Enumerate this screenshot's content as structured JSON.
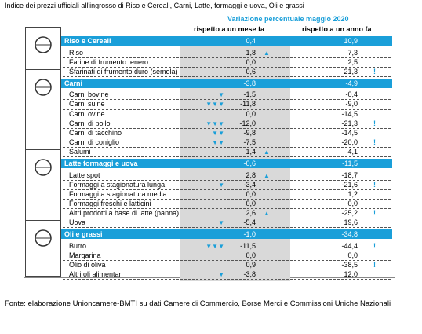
{
  "header": {
    "title": "Indice dei prezzi ufficiali all'ingrosso di Riso e Cereali, Carni, Latte, formaggi e uova, Oli e grassi",
    "period": "Variazione percentuale maggio 2020",
    "col_month": "rispetto a un mese fa",
    "col_year": "rispetto a un anno fa"
  },
  "sections": [
    {
      "name": "Riso e Cereali",
      "month": "0,4",
      "year": "10,9",
      "rows": [
        {
          "name": "Riso",
          "month": "1,8",
          "up": "▲",
          "year": "7,3"
        },
        {
          "name": "Farine di frumento tenero",
          "month": "0,0",
          "year": "2,5"
        },
        {
          "name": "Sfarinati di frumento duro (semola)",
          "month": "0,6",
          "year": "21,3",
          "flag": "!"
        }
      ]
    },
    {
      "name": "Carni",
      "month": "-3,8",
      "year": "-4,9",
      "rows": [
        {
          "name": "Carni bovine",
          "down": "▼",
          "month": "-1,5",
          "year": "-0,4"
        },
        {
          "name": "Carni suine",
          "down": "▼▼▼",
          "month": "-11,8",
          "year": "-9,0"
        },
        {
          "name": "Carni ovine",
          "month": "0,0",
          "year": "-14,5"
        },
        {
          "name": "Carni di pollo",
          "down": "▼▼▼",
          "month": "-12,0",
          "year": "-21,3",
          "flag": "!"
        },
        {
          "name": "Carni di tacchino",
          "down": "▼▼",
          "month": "-9,8",
          "year": "-14,5"
        },
        {
          "name": "Carni di coniglio",
          "down": "▼▼",
          "month": "-7,5",
          "year": "-20,0",
          "flag": "!"
        },
        {
          "name": "Salumi",
          "month": "1,4",
          "up": "▲",
          "year": "4,1"
        }
      ]
    },
    {
      "name": "Latte formaggi e uova",
      "month": "-0,6",
      "year": "-11,5",
      "rows": [
        {
          "name": "Latte spot",
          "month": "2,8",
          "up": "▲",
          "year": "-18,7"
        },
        {
          "name": "Formaggi a stagionatura lunga",
          "down": "▼",
          "month": "-3,4",
          "year": "-21,6",
          "flag": "!"
        },
        {
          "name": "Formaggi a stagionatura media",
          "month": "0,0",
          "year": "1,2"
        },
        {
          "name": "Formaggi freschi e latticini",
          "month": "0,0",
          "year": "0,0"
        },
        {
          "name": "Altri prodotti a base di latte (panna)",
          "month": "2,6",
          "up": "▲",
          "year": "-25,2",
          "flag": "!"
        },
        {
          "name": "Uova",
          "down": "▼",
          "month": "-5,4",
          "year": "19,6"
        }
      ]
    },
    {
      "name": "Oli e grassi",
      "month": "-1,0",
      "year": "-34,8",
      "rows": [
        {
          "name": "Burro",
          "down": "▼▼▼",
          "month": "-11,5",
          "year": "-44,4",
          "flag": "!"
        },
        {
          "name": "Margarina",
          "month": "0,0",
          "year": "0,0"
        },
        {
          "name": "Olio di oliva",
          "month": "0,9",
          "year": "-38,5",
          "flag": "!"
        },
        {
          "name": "Altri oli alimentari",
          "down": "▼",
          "month": "-3,8",
          "year": "12,0"
        }
      ]
    }
  ],
  "footer": {
    "source": "Fonte: elaborazione Unioncamere-BMTI su dati Camere di Commercio, Borse Merci e Commissioni Uniche Nazionali"
  }
}
